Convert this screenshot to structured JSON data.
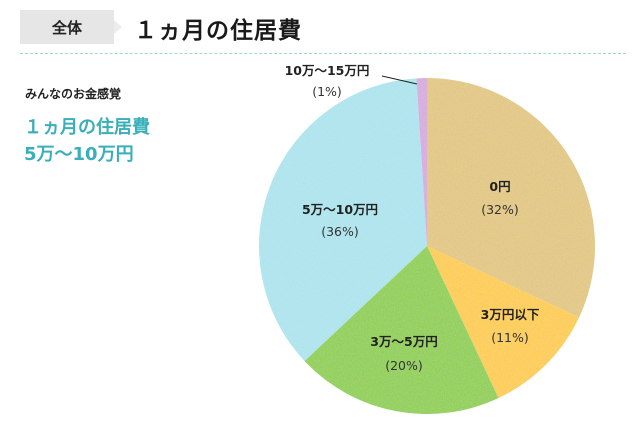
{
  "header": {
    "tab_label": "全体",
    "title": "１ヵ月の住居費"
  },
  "summary": {
    "caption": "みんなのお金感覚",
    "highlight_line1": "１ヵ月の住居費",
    "highlight_line2": "5万〜10万円"
  },
  "chart_data": {
    "type": "pie",
    "title": "１ヵ月の住居費",
    "start_angle_deg": 0,
    "direction": "clockwise",
    "categories": [
      "0円",
      "3万円以下",
      "3万〜5万円",
      "5万〜10万円",
      "10万〜15万円"
    ],
    "values": [
      32,
      11,
      20,
      36,
      1
    ],
    "unit": "%",
    "colors": [
      "#e0c478",
      "#fdc935",
      "#88cc3c",
      "#a8e2ec",
      "#d4a6dc"
    ],
    "labels": [
      {
        "name": "0円",
        "pct": "(32%)"
      },
      {
        "name": "3万円以下",
        "pct": "(11%)"
      },
      {
        "name": "3万〜5万円",
        "pct": "(20%)"
      },
      {
        "name": "5万〜10万円",
        "pct": "(36%)"
      },
      {
        "name": "10万〜15万円",
        "pct": "(1%)",
        "leader_line": true
      }
    ],
    "legend": "none (inline labels)"
  }
}
